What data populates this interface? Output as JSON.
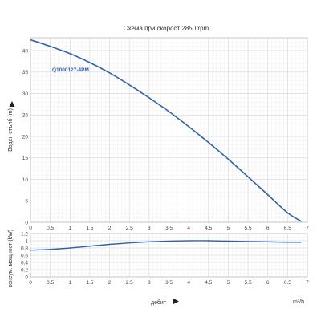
{
  "chart_data": [
    {
      "type": "line",
      "title": "Схема при скорост 2850 rpm",
      "ylabel": "Воден стълб (m)",
      "xlabel": "",
      "x_ticks": [
        "0",
        "0.5",
        "1",
        "1.5",
        "2",
        "2.5",
        "3",
        "3.5",
        "4",
        "4.5",
        "5",
        "5.5",
        "6",
        "6.5",
        "7"
      ],
      "y_ticks": [
        "0",
        "5",
        "10",
        "15",
        "20",
        "25",
        "30",
        "35",
        "40"
      ],
      "xlim": [
        0,
        7
      ],
      "ylim": [
        0,
        43
      ],
      "grid": true,
      "series": [
        {
          "name": "Q1000127-4PM",
          "color": "#2f63a8",
          "x": [
            0,
            0.5,
            1,
            1.5,
            2,
            2.5,
            3,
            3.5,
            4,
            4.5,
            5,
            5.5,
            6,
            6.5,
            6.85
          ],
          "y": [
            42.5,
            41.0,
            39.3,
            37.2,
            34.8,
            32.0,
            29.0,
            25.8,
            22.3,
            18.6,
            14.7,
            10.6,
            6.4,
            2.2,
            0.2
          ]
        }
      ]
    },
    {
      "type": "line",
      "title": "",
      "ylabel": "консум. мощност (kW)",
      "xlabel": "дебит",
      "x_unit": "m³/h",
      "x_ticks": [
        "0",
        "0.5",
        "1",
        "1.5",
        "2",
        "2.5",
        "3",
        "3.5",
        "4",
        "4.5",
        "5",
        "5.5",
        "6",
        "6.5",
        "7"
      ],
      "y_ticks": [
        "0",
        "0.2",
        "0.4",
        "0.6",
        "0.8",
        "1",
        "1.2"
      ],
      "xlim": [
        0,
        7
      ],
      "ylim": [
        0,
        1.2
      ],
      "grid": true,
      "series": [
        {
          "color": "#2f63a8",
          "x": [
            0,
            0.5,
            1,
            1.5,
            2,
            2.5,
            3,
            3.5,
            4,
            4.5,
            5,
            5.5,
            6,
            6.5,
            6.85
          ],
          "y": [
            0.74,
            0.76,
            0.8,
            0.85,
            0.9,
            0.94,
            0.97,
            0.99,
            1.0,
            1.0,
            0.99,
            0.98,
            0.97,
            0.96,
            0.96
          ]
        }
      ]
    }
  ],
  "icons": {
    "ylabel_arrow": "arrow-right-icon",
    "xlabel_arrow": "arrow-right-icon"
  }
}
